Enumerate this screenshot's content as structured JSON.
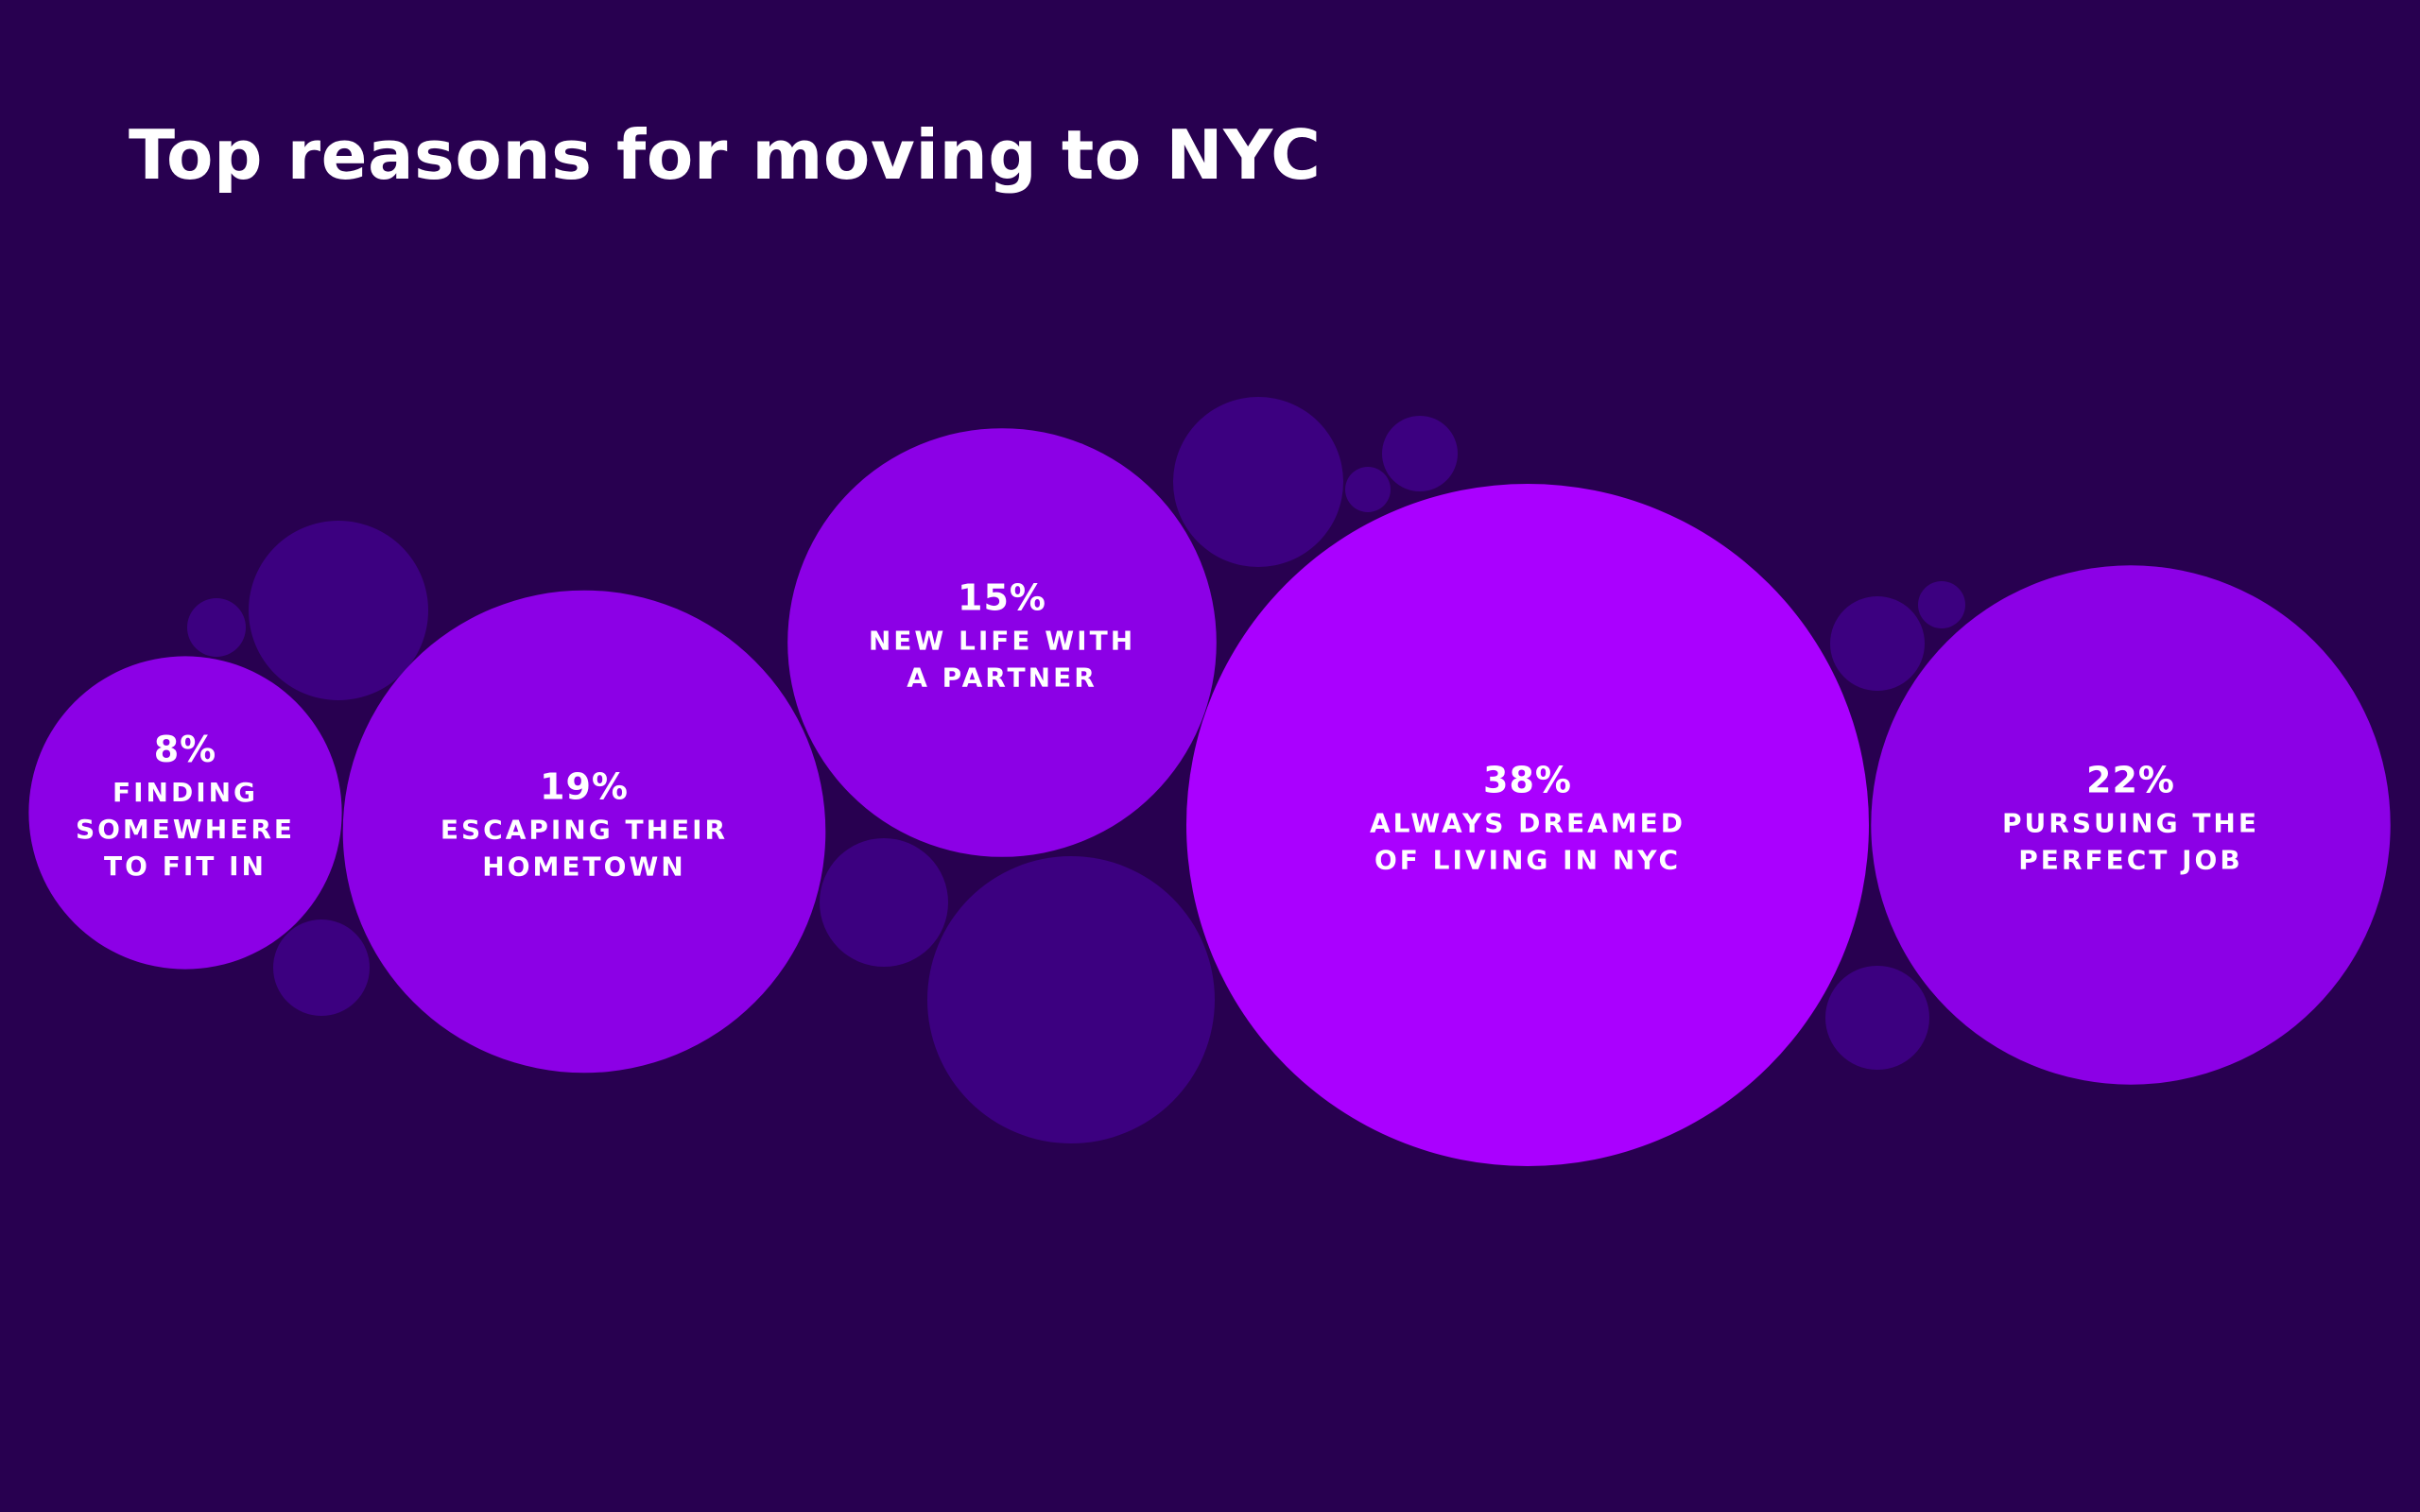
{
  "chart_data": {
    "type": "bubble",
    "title": "Top reasons for moving to NYC",
    "unit": "%",
    "series": [
      {
        "value": 8,
        "value_label": "8%",
        "label_lines": [
          "FINDING",
          "SOMEWHERE",
          "TO FIT IN"
        ],
        "color": "#8c00e6"
      },
      {
        "value": 19,
        "value_label": "19%",
        "label_lines": [
          "ESCAPING THEIR",
          "HOMETOWN"
        ],
        "color": "#8c00e6"
      },
      {
        "value": 15,
        "value_label": "15%",
        "label_lines": [
          "NEW LIFE WITH",
          "A PARTNER"
        ],
        "color": "#8c00e6"
      },
      {
        "value": 38,
        "value_label": "38%",
        "label_lines": [
          "ALWAYS DREAMED",
          "OF LIVING IN NYC"
        ],
        "color": "#aa00ff"
      },
      {
        "value": 22,
        "value_label": "22%",
        "label_lines": [
          "PURSUING THE",
          "PERFECT JOB"
        ],
        "color": "#8c00e6"
      }
    ],
    "decorative_bubble_color": "#3c0080",
    "background_color": "#280050",
    "text_color": "#ffffff"
  }
}
